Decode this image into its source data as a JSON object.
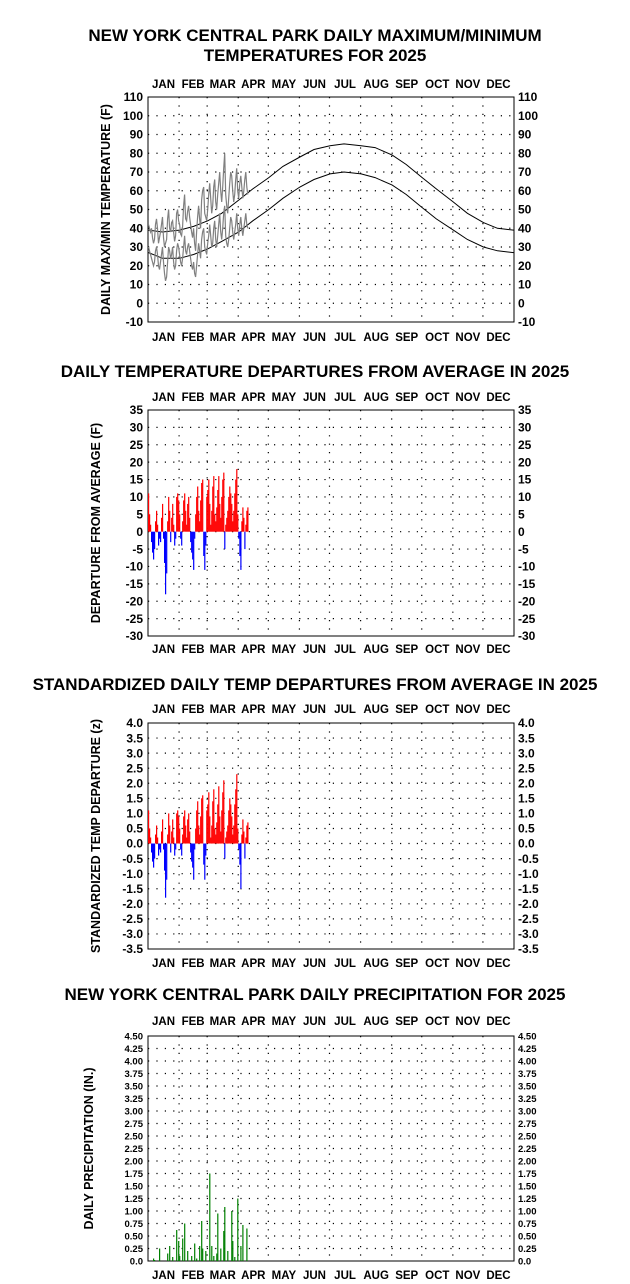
{
  "charts": [
    {
      "type": "line",
      "title_line1": "NEW YORK CENTRAL PARK DAILY MAXIMUM/MINIMUM",
      "title_line2": "TEMPERATURES FOR 2025",
      "ylabel": "DAILY MAX/MIN TEMPERATURE (F)",
      "ylim": [
        -10,
        110
      ],
      "yticks": [
        "110",
        "100",
        "90",
        "80",
        "70",
        "60",
        "50",
        "40",
        "30",
        "20",
        "10",
        "0",
        "-10"
      ],
      "ytick_values": [
        110,
        100,
        90,
        80,
        70,
        60,
        50,
        40,
        30,
        20,
        10,
        0,
        -10
      ],
      "months": [
        "JAN",
        "FEB",
        "MAR",
        "APR",
        "MAY",
        "JUN",
        "JUL",
        "AUG",
        "SEP",
        "OCT",
        "NOV",
        "DEC"
      ],
      "grid": "dotted",
      "normal_max": {
        "days": [
          1,
          15,
          32,
          46,
          60,
          74,
          91,
          105,
          121,
          135,
          152,
          166,
          182,
          196,
          213,
          227,
          244,
          258,
          274,
          288,
          305,
          319,
          335,
          349,
          365
        ],
        "values": [
          39,
          38,
          39,
          41,
          44,
          48,
          55,
          61,
          67,
          73,
          78,
          82,
          84,
          85,
          84,
          83,
          79,
          74,
          67,
          61,
          54,
          48,
          43,
          40,
          39
        ]
      },
      "normal_min": {
        "days": [
          1,
          15,
          32,
          46,
          60,
          74,
          91,
          105,
          121,
          135,
          152,
          166,
          182,
          196,
          213,
          227,
          244,
          258,
          274,
          288,
          305,
          319,
          335,
          349,
          365
        ],
        "values": [
          27,
          24,
          24,
          26,
          29,
          33,
          38,
          44,
          50,
          56,
          62,
          66,
          69,
          70,
          69,
          67,
          63,
          58,
          51,
          45,
          39,
          34,
          30,
          28,
          27
        ]
      },
      "observed_max": [
        42,
        40,
        38,
        40,
        35,
        32,
        34,
        42,
        45,
        40,
        32,
        35,
        38,
        42,
        46,
        35,
        30,
        32,
        34,
        45,
        50,
        40,
        38,
        43,
        44,
        38,
        33,
        36,
        48,
        50,
        44,
        42,
        37,
        36,
        41,
        52,
        58,
        45,
        44,
        49,
        52,
        46,
        42,
        38,
        35,
        40,
        32,
        28,
        38,
        46,
        52,
        45,
        40,
        55,
        60,
        62,
        48,
        46,
        44,
        50,
        58,
        64,
        56,
        48,
        52,
        62,
        66,
        54,
        50,
        58,
        64,
        70,
        60,
        54,
        62,
        72,
        80,
        58,
        52,
        48,
        56,
        64,
        70,
        68,
        60,
        54,
        58,
        66,
        72,
        60,
        56,
        64,
        68,
        62,
        56,
        60,
        66,
        70,
        62,
        58
      ],
      "observed_min": [
        30,
        28,
        26,
        24,
        22,
        20,
        22,
        28,
        30,
        26,
        20,
        18,
        22,
        26,
        30,
        22,
        16,
        12,
        14,
        22,
        30,
        28,
        24,
        26,
        30,
        22,
        18,
        20,
        28,
        32,
        30,
        26,
        22,
        20,
        24,
        30,
        36,
        28,
        26,
        30,
        32,
        28,
        24,
        20,
        18,
        22,
        16,
        14,
        20,
        26,
        32,
        28,
        24,
        34,
        38,
        40,
        30,
        28,
        26,
        32,
        36,
        42,
        36,
        30,
        32,
        40,
        44,
        34,
        30,
        36,
        42,
        48,
        38,
        34,
        40,
        48,
        52,
        36,
        32,
        30,
        34,
        40,
        46,
        44,
        38,
        34,
        38,
        42,
        48,
        40,
        36,
        42,
        46,
        40,
        36,
        40,
        44,
        48,
        42,
        40
      ]
    },
    {
      "type": "bar",
      "title": "DAILY TEMPERATURE DEPARTURES FROM AVERAGE IN 2025",
      "ylabel": "DEPARTURE FROM AVERAGE (F)",
      "ylim": [
        -30,
        35
      ],
      "yticks": [
        "35",
        "30",
        "25",
        "20",
        "15",
        "10",
        "5",
        "0",
        "-5",
        "-10",
        "-15",
        "-20",
        "-25",
        "-30"
      ],
      "ytick_values": [
        35,
        30,
        25,
        20,
        15,
        10,
        5,
        0,
        -5,
        -10,
        -15,
        -20,
        -25,
        -30
      ],
      "months": [
        "JAN",
        "FEB",
        "MAR",
        "APR",
        "MAY",
        "JUN",
        "JUL",
        "AUG",
        "SEP",
        "OCT",
        "NOV",
        "DEC"
      ],
      "grid": "dotted",
      "positive_color": "#ff0000",
      "negative_color": "#0000ff",
      "values": [
        11,
        5,
        2,
        -3,
        -6,
        -8,
        -5,
        3,
        6,
        2,
        -4,
        -2,
        -3,
        4,
        8,
        -2,
        -9,
        -18,
        -12,
        3,
        10,
        6,
        -3,
        4,
        8,
        2,
        -4,
        -2,
        10,
        11,
        9,
        5,
        -2,
        -4,
        3,
        9,
        11,
        6,
        2,
        8,
        10,
        4,
        -3,
        -6,
        -8,
        -11,
        -2,
        5,
        10,
        13,
        6,
        3,
        9,
        14,
        15,
        -7,
        -11,
        -4,
        10,
        12,
        15,
        8,
        2,
        6,
        13,
        16,
        5,
        3,
        7,
        12,
        16,
        8,
        4,
        10,
        15,
        17,
        -5,
        2,
        4,
        6,
        10,
        13,
        11,
        8,
        3,
        6,
        11,
        15,
        18,
        5,
        -2,
        -7,
        -11,
        3,
        7,
        4,
        -5,
        2,
        6,
        7
      ]
    },
    {
      "type": "bar",
      "title": "STANDARDIZED DAILY TEMP DEPARTURES FROM AVERAGE IN 2025",
      "ylabel": "STANDARDIZED TEMP DEPARTURE (z)",
      "ylim": [
        -3.5,
        4.0
      ],
      "yticks": [
        "4.0",
        "3.5",
        "3.0",
        "2.5",
        "2.0",
        "1.5",
        "1.0",
        "0.5",
        "0.0",
        "-0.5",
        "-1.0",
        "-1.5",
        "-2.0",
        "-2.5",
        "-3.0",
        "-3.5"
      ],
      "ytick_values": [
        4.0,
        3.5,
        3.0,
        2.5,
        2.0,
        1.5,
        1.0,
        0.5,
        0.0,
        -0.5,
        -1.0,
        -1.5,
        -2.0,
        -2.5,
        -3.0,
        -3.5
      ],
      "months": [
        "JAN",
        "FEB",
        "MAR",
        "APR",
        "MAY",
        "JUN",
        "JUL",
        "AUG",
        "SEP",
        "OCT",
        "NOV",
        "DEC"
      ],
      "grid": "dotted",
      "positive_color": "#ff0000",
      "negative_color": "#0000ff",
      "values": [
        1.1,
        0.5,
        0.2,
        -0.3,
        -0.6,
        -0.8,
        -0.5,
        0.3,
        0.6,
        0.2,
        -0.4,
        -0.2,
        -0.3,
        0.4,
        0.8,
        -0.2,
        -0.9,
        -1.8,
        -1.2,
        0.3,
        1.0,
        0.6,
        -0.3,
        0.4,
        0.8,
        0.2,
        -0.4,
        -0.2,
        1.0,
        1.1,
        0.9,
        0.5,
        -0.2,
        -0.4,
        0.3,
        0.9,
        1.1,
        0.6,
        0.2,
        0.8,
        1.0,
        0.4,
        -0.3,
        -0.6,
        -0.8,
        -1.2,
        -0.2,
        0.5,
        1.1,
        1.4,
        0.6,
        0.3,
        0.9,
        1.5,
        1.6,
        -0.7,
        -1.2,
        -0.4,
        1.1,
        1.3,
        1.7,
        0.9,
        0.2,
        0.6,
        1.4,
        1.8,
        0.5,
        0.3,
        0.7,
        1.3,
        1.9,
        0.9,
        0.4,
        1.1,
        1.7,
        2.1,
        -0.5,
        0.2,
        0.4,
        0.6,
        1.1,
        1.5,
        1.3,
        0.9,
        0.3,
        0.6,
        1.3,
        1.8,
        2.3,
        0.5,
        -0.2,
        -0.7,
        -1.5,
        0.3,
        0.8,
        0.4,
        -0.5,
        0.2,
        0.6,
        0.7
      ]
    },
    {
      "type": "bar",
      "title": "NEW YORK CENTRAL PARK DAILY PRECIPITATION FOR 2025",
      "ylabel": "DAILY PRECIPITATION (IN.)",
      "ylim": [
        0,
        4.5
      ],
      "yticks": [
        "4.50",
        "4.25",
        "4.00",
        "3.75",
        "3.50",
        "3.25",
        "3.00",
        "2.75",
        "2.50",
        "2.25",
        "2.00",
        "1.75",
        "1.50",
        "1.25",
        "1.00",
        "0.75",
        "0.50",
        "0.25",
        "0.0"
      ],
      "ytick_values": [
        4.5,
        4.25,
        4.0,
        3.75,
        3.5,
        3.25,
        3.0,
        2.75,
        2.5,
        2.25,
        2.0,
        1.75,
        1.5,
        1.25,
        1.0,
        0.75,
        0.5,
        0.25,
        0.0
      ],
      "months": [
        "JAN",
        "FEB",
        "MAR",
        "APR",
        "MAY",
        "JUN",
        "JUL",
        "AUG",
        "SEP",
        "OCT",
        "NOV",
        "DEC"
      ],
      "grid": "dotted",
      "bar_color": "#008000",
      "days": [
        6,
        7,
        12,
        20,
        22,
        25,
        29,
        31,
        32,
        35,
        37,
        40,
        44,
        47,
        49,
        52,
        54,
        55,
        58,
        62,
        64,
        66,
        69,
        70,
        73,
        76,
        77,
        80,
        84,
        85,
        87,
        90,
        93,
        95,
        99
      ],
      "values": [
        0.05,
        0.02,
        0.25,
        0.15,
        0.3,
        0.08,
        0.62,
        0.4,
        0.1,
        0.45,
        0.75,
        0.2,
        0.1,
        0.35,
        0.05,
        0.3,
        0.8,
        0.25,
        0.2,
        1.75,
        0.3,
        0.1,
        0.15,
        0.95,
        0.25,
        0.6,
        1.08,
        0.2,
        1.0,
        0.4,
        0.08,
        1.25,
        0.3,
        0.72,
        0.65
      ]
    }
  ]
}
